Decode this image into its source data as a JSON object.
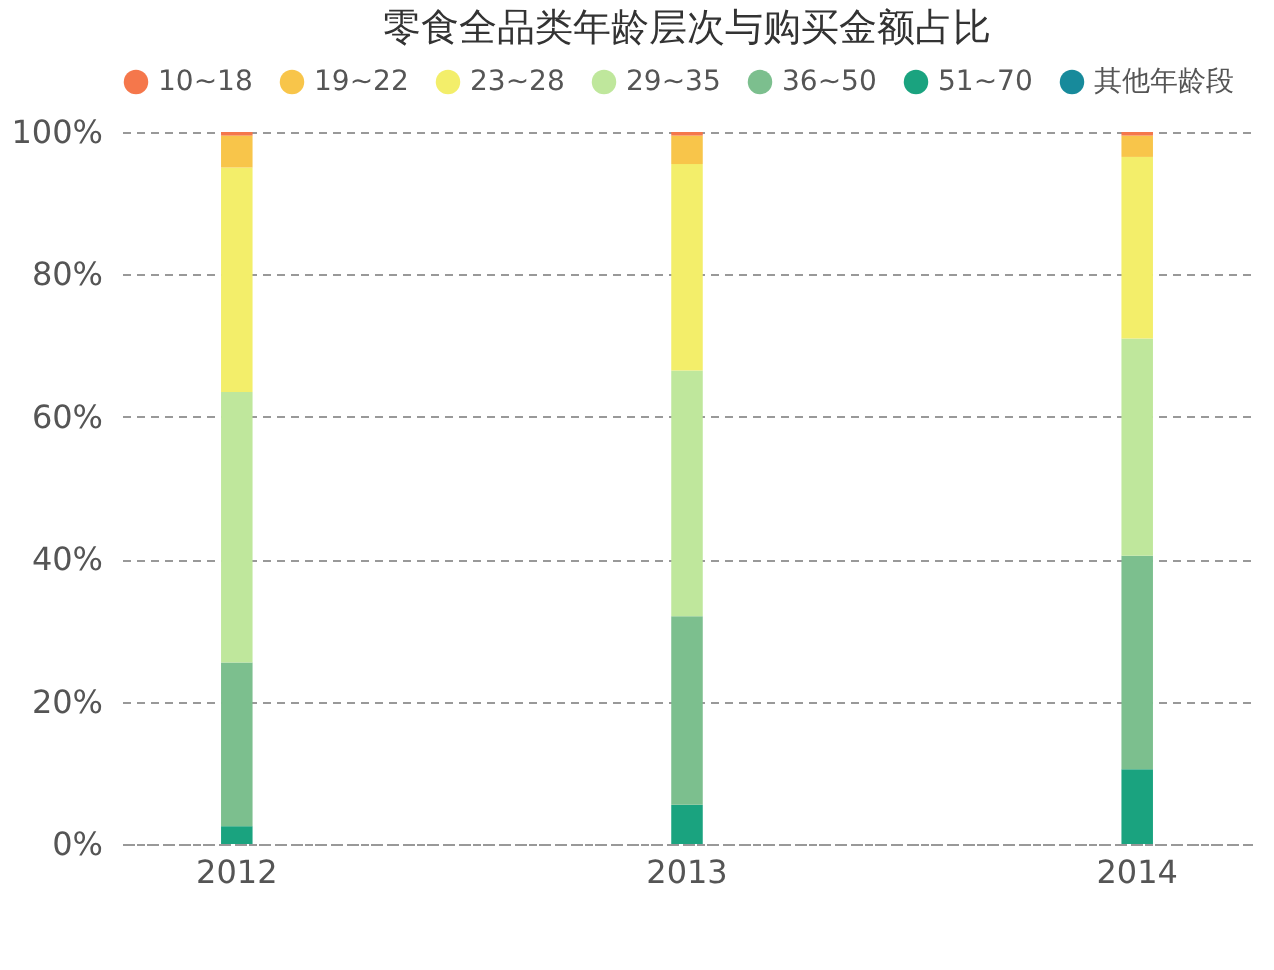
{
  "chart_data": {
    "type": "bar",
    "title": "零食全品类年龄层次与购买金额占比",
    "stacked": true,
    "categories": [
      "2012",
      "2013",
      "2014"
    ],
    "series": [
      {
        "name": "其他年龄段",
        "color": "#178a9b",
        "values": [
          null,
          null,
          null
        ]
      },
      {
        "name": "51~70",
        "color": "#1aa37f",
        "values": [
          2.5,
          5.5,
          10.5
        ]
      },
      {
        "name": "36~50",
        "color": "#7cbf8e",
        "values": [
          23,
          26.5,
          30
        ]
      },
      {
        "name": "29~35",
        "color": "#bfe79c",
        "values": [
          38,
          34.5,
          30.5
        ]
      },
      {
        "name": "23~28",
        "color": "#f3ee6a",
        "values": [
          31.5,
          29,
          25.5
        ]
      },
      {
        "name": "19~22",
        "color": "#f8c54a",
        "values": [
          4.5,
          4,
          3
        ]
      },
      {
        "name": "10~18",
        "color": "#f5774b",
        "values": [
          0.5,
          0.5,
          0.5
        ]
      }
    ],
    "ylim": [
      0,
      100
    ],
    "yticks": [
      {
        "value": 0,
        "label": "0%"
      },
      {
        "value": 20,
        "label": "20%"
      },
      {
        "value": 40,
        "label": "40%"
      },
      {
        "value": 60,
        "label": "60%"
      },
      {
        "value": 80,
        "label": "80%"
      },
      {
        "value": 100,
        "label": "100%"
      }
    ],
    "grid": "y",
    "legend": "top"
  }
}
